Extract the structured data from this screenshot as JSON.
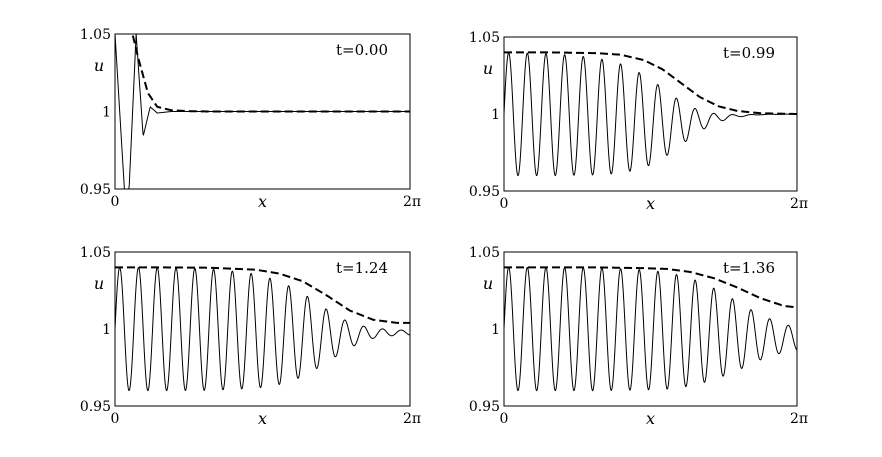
{
  "chart_data": [
    {
      "type": "line",
      "annotation": "t=0.00",
      "t": 0.0,
      "xlabel": "x",
      "ylabel": "u",
      "xlim": [
        0,
        6.2832
      ],
      "ylim": [
        0.95,
        1.05
      ],
      "xticks": [
        "0",
        "2π"
      ],
      "yticks": [
        "0.95",
        "1",
        "1.05"
      ],
      "grid": false,
      "series": [
        {
          "style": "solid",
          "x": [
            0.0,
            0.2,
            0.3,
            0.45,
            0.6,
            0.75,
            0.9,
            1.2,
            2.0,
            3.0,
            4.0,
            5.0,
            6.2832
          ],
          "y": [
            1.05,
            0.95,
            0.95,
            1.05,
            0.984,
            1.003,
            0.999,
            1.0,
            1.0,
            1.0,
            1.0,
            1.0,
            1.0
          ]
        },
        {
          "style": "dashed",
          "x": [
            0.38,
            0.5,
            0.7,
            0.9,
            1.2,
            1.6,
            2.0,
            3.0,
            4.0,
            5.0,
            6.2832
          ],
          "y": [
            1.049,
            1.034,
            1.012,
            1.003,
            1.0008,
            1.0002,
            1.0,
            1.0,
            1.0,
            1.0,
            1.0
          ]
        }
      ]
    },
    {
      "type": "line",
      "annotation": "t=0.99",
      "t": 0.99,
      "xlabel": "x",
      "ylabel": "u",
      "xlim": [
        0,
        6.2832
      ],
      "ylim": [
        0.95,
        1.05
      ],
      "xticks": [
        "0",
        "2π"
      ],
      "yticks": [
        "0.95",
        "1",
        "1.05"
      ],
      "grid": false,
      "series": [
        {
          "style": "solid",
          "oscillation": {
            "wavelength": 0.4,
            "phase": 0.1,
            "envelope_center": 3.8,
            "envelope_width": 0.75
          }
        },
        {
          "style": "dashed",
          "x": [
            0.0,
            1.0,
            2.0,
            2.5,
            3.0,
            3.4,
            3.8,
            4.2,
            4.6,
            5.0,
            5.5,
            6.2832
          ],
          "y": [
            1.04,
            1.04,
            1.0395,
            1.0385,
            1.035,
            1.029,
            1.02,
            1.011,
            1.005,
            1.002,
            1.0005,
            1.0
          ]
        }
      ]
    },
    {
      "type": "line",
      "annotation": "t=1.24",
      "t": 1.24,
      "xlabel": "x",
      "ylabel": "u",
      "xlim": [
        0,
        6.2832
      ],
      "ylim": [
        0.95,
        1.05
      ],
      "xticks": [
        "0",
        "2π"
      ],
      "yticks": [
        "0.95",
        "1",
        "1.05"
      ],
      "grid": false,
      "series": [
        {
          "style": "solid",
          "oscillation": {
            "wavelength": 0.4,
            "phase": 0.1,
            "envelope_center": 4.9,
            "envelope_width": 0.75
          }
        },
        {
          "style": "dashed",
          "x": [
            0.0,
            1.0,
            2.0,
            3.0,
            3.5,
            4.0,
            4.5,
            5.0,
            5.5,
            6.0,
            6.2832
          ],
          "y": [
            1.04,
            1.04,
            1.0398,
            1.0385,
            1.036,
            1.031,
            1.022,
            1.012,
            1.006,
            1.004,
            1.004
          ]
        }
      ]
    },
    {
      "type": "line",
      "annotation": "t=1.36",
      "t": 1.36,
      "xlabel": "x",
      "ylabel": "u",
      "xlim": [
        0,
        6.2832
      ],
      "ylim": [
        0.95,
        1.05
      ],
      "xticks": [
        "0",
        "2π"
      ],
      "yticks": [
        "0.95",
        "1",
        "1.05"
      ],
      "grid": false,
      "series": [
        {
          "style": "solid",
          "oscillation": {
            "wavelength": 0.4,
            "phase": 0.1,
            "envelope_center": 5.6,
            "envelope_width": 0.75
          }
        },
        {
          "style": "dashed",
          "x": [
            0.0,
            1.0,
            2.0,
            3.0,
            3.5,
            4.0,
            4.5,
            5.0,
            5.5,
            6.0,
            6.2832
          ],
          "y": [
            1.04,
            1.04,
            1.04,
            1.0395,
            1.039,
            1.037,
            1.033,
            1.027,
            1.02,
            1.015,
            1.014
          ]
        }
      ]
    }
  ]
}
